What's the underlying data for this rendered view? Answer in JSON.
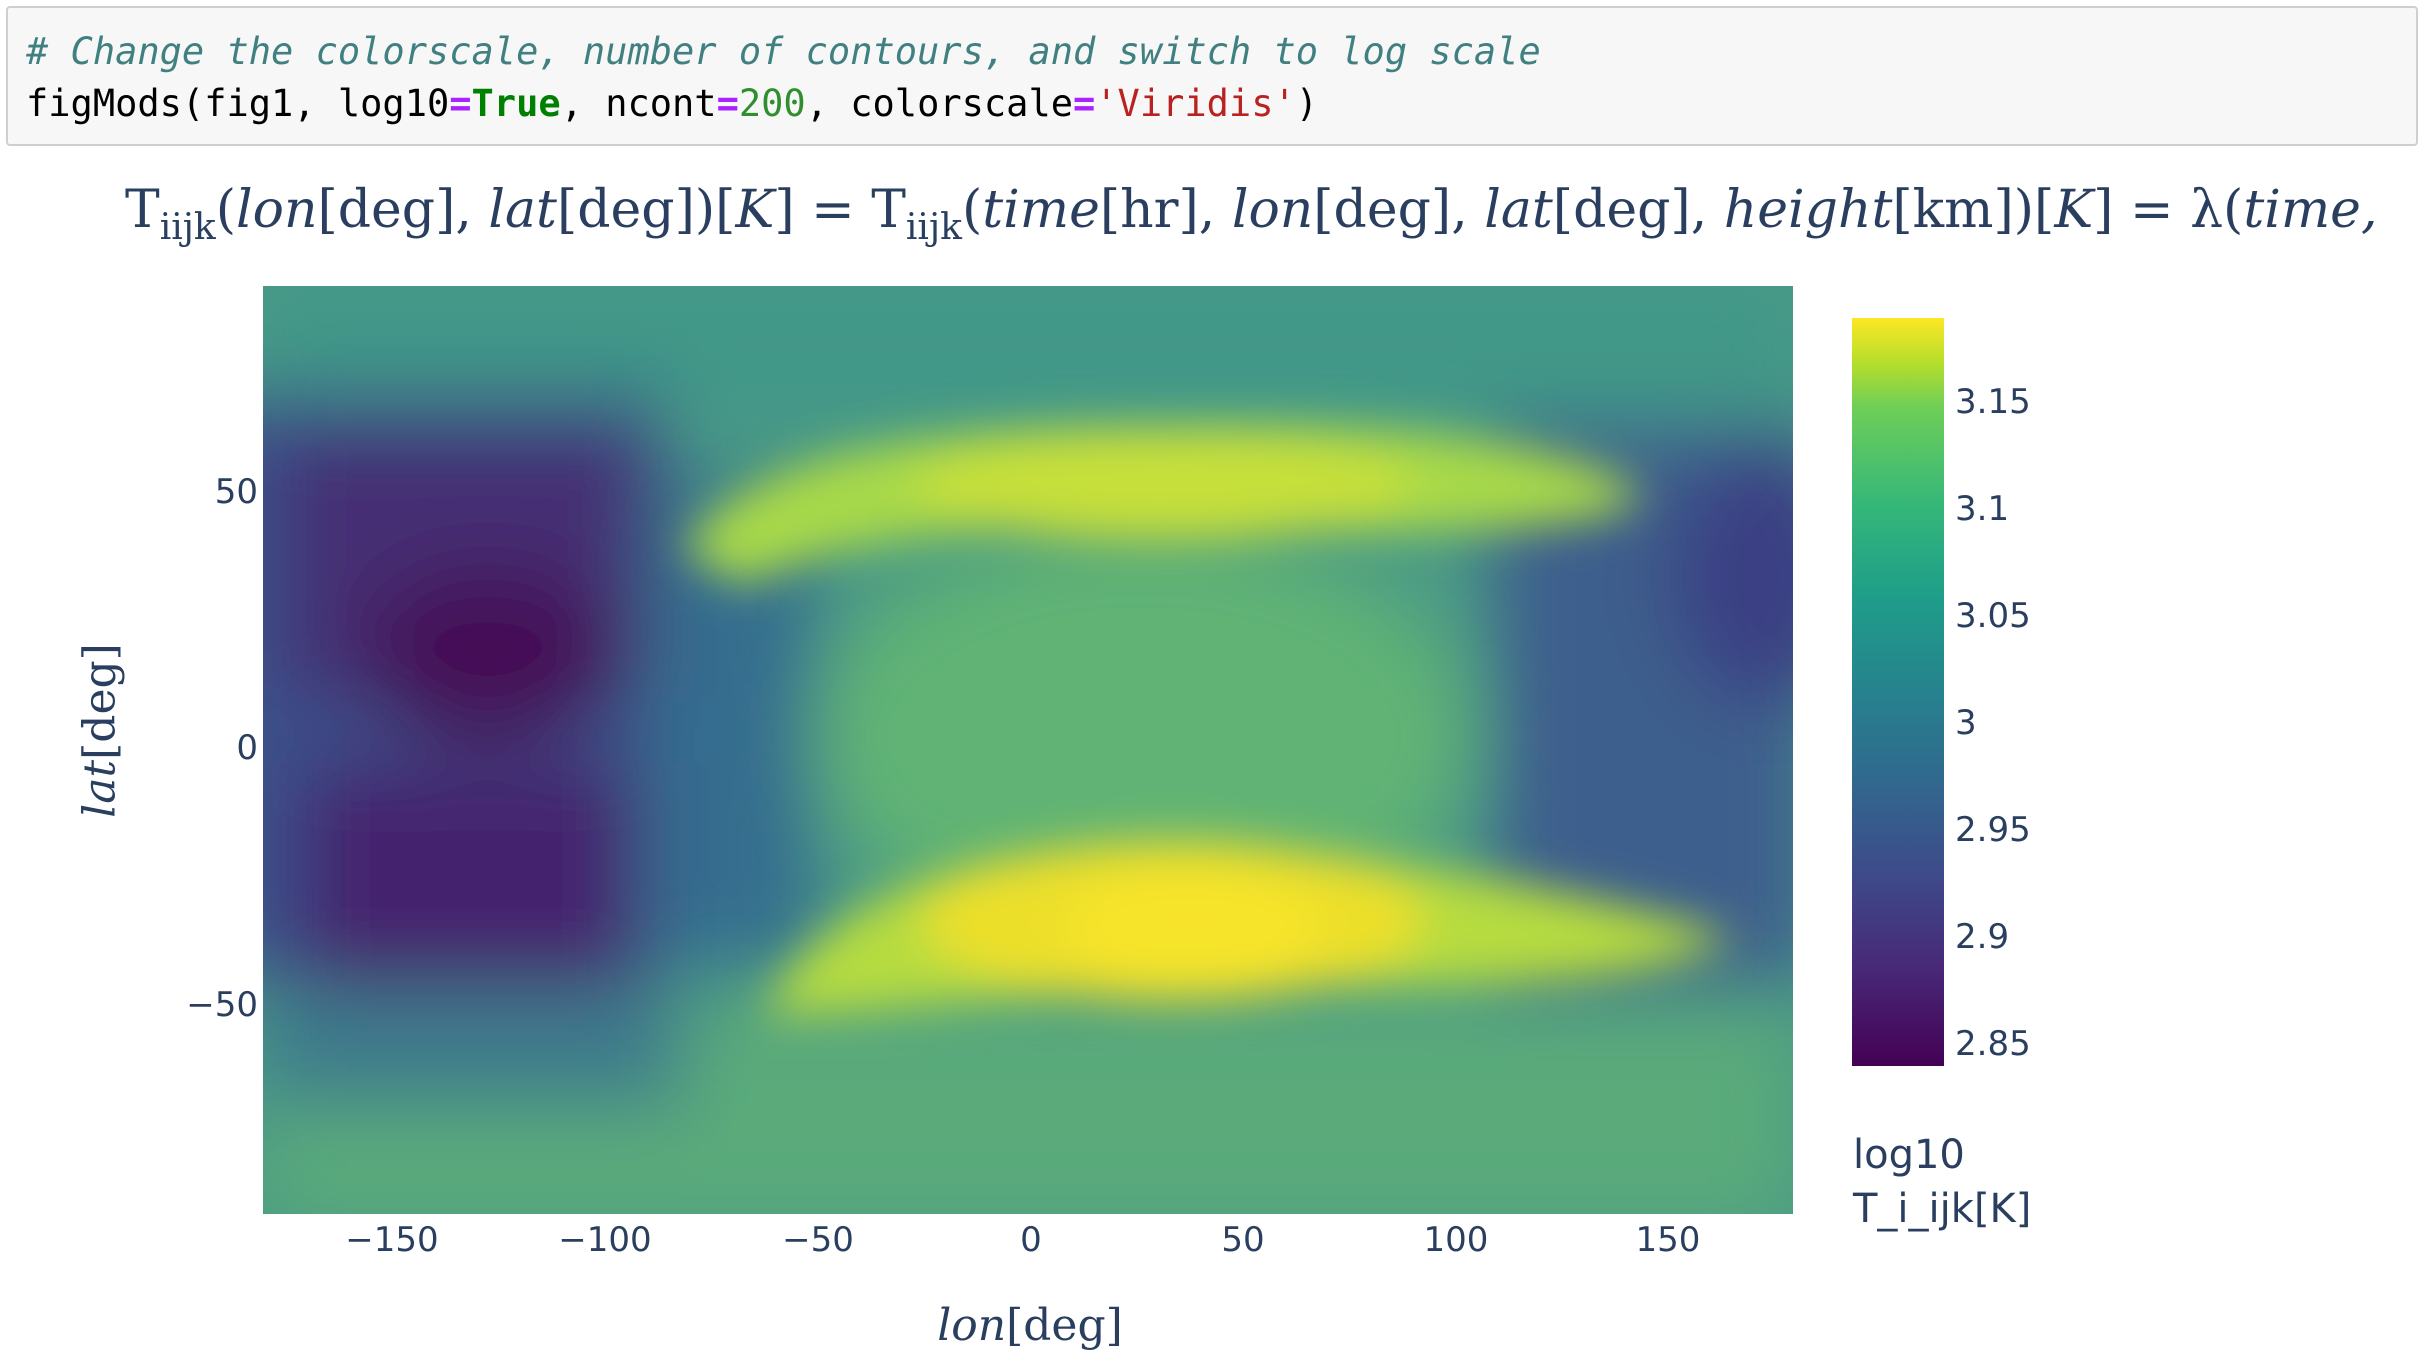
{
  "code": {
    "comment": "# Change the colorscale, number of contours, and switch to log scale",
    "fn": "figMods(fig1, log10",
    "eq1": "=",
    "true_kw": "True",
    "sep1": ", ncont",
    "eq2": "=",
    "num": "200",
    "sep2": ", colorscale",
    "eq3": "=",
    "str": "'Viridis'",
    "close": ")"
  },
  "figure": {
    "title_parts": {
      "t1": "T",
      "s1": "iijk",
      "a1": "(",
      "lon1": "lon",
      "deg1": "[deg], ",
      "lat1": "lat",
      "deg2": "[deg])[",
      "K1": "K",
      "eq": "] = ",
      "t2": "T",
      "s2": "iijk",
      "a2": "(",
      "time": "time",
      "hr": "[hr], ",
      "lon2": "lon",
      "deg3": "[deg], ",
      "lat2": "lat",
      "deg4": "[deg], ",
      "height": "height",
      "km": "[km])[",
      "K2": "K",
      "eq2": "] = λ(",
      "time2": "time,"
    },
    "xaxis_title_var": "lon",
    "xaxis_title_unit": "[deg]",
    "yaxis_title_var": "lat",
    "yaxis_title_unit": "[deg]",
    "colorbar_title_line1": "log10",
    "colorbar_title_line2": "T_i_ijk[K]",
    "colorscale": "Viridis"
  },
  "chart_data": {
    "type": "heatmap",
    "title": "T_iijk(lon[deg], lat[deg])[K] = T_iijk(time[hr], lon[deg], lat[deg], height[km])[K] = λ(time,",
    "xlabel": "lon[deg]",
    "ylabel": "lat[deg]",
    "xlim": [
      -180,
      180
    ],
    "ylim": [
      -90,
      90
    ],
    "x_ticks": [
      -150,
      -100,
      -50,
      0,
      50,
      100,
      150
    ],
    "y_ticks": [
      50,
      0,
      -50
    ],
    "colorbar_range": [
      2.84,
      3.19
    ],
    "colorbar_ticks": [
      3.15,
      3.1,
      3.05,
      3,
      2.95,
      2.9,
      2.85
    ],
    "colorbar_title": "log10 T_i_ijk[K]",
    "features": [
      {
        "name": "warm band north",
        "lon": 40,
        "lat": 50,
        "value": 3.15
      },
      {
        "name": "warm band south",
        "lon": 40,
        "lat": -40,
        "value": 3.19
      },
      {
        "name": "cold region west",
        "lon": -115,
        "lat": 20,
        "value": 2.85
      },
      {
        "name": "cold region south-west",
        "lon": -120,
        "lat": -35,
        "value": 2.88
      },
      {
        "name": "equatorial center",
        "lon": 30,
        "lat": 5,
        "value": 3.07
      },
      {
        "name": "east edge north",
        "lon": 170,
        "lat": 35,
        "value": 2.91
      }
    ]
  }
}
